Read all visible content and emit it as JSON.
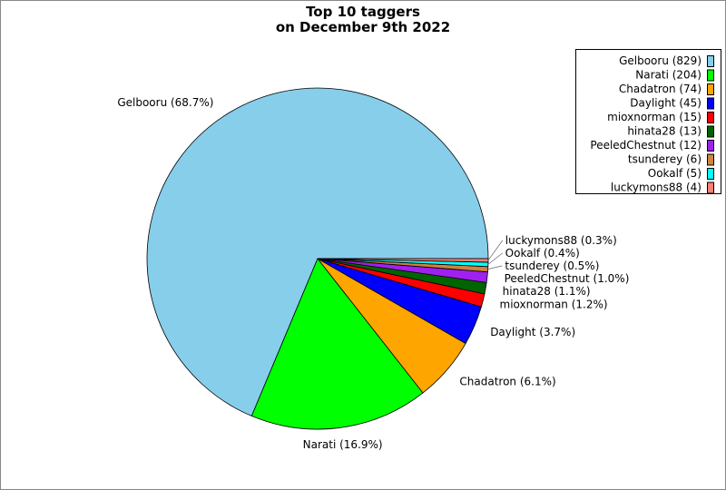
{
  "chart_data": {
    "type": "pie",
    "title": [
      "Top 10 taggers",
      "on December 9th 2022"
    ],
    "start_angle_deg": 0,
    "direction": "counterclockwise",
    "legend_placement": "top-right",
    "slices": [
      {
        "name": "Gelbooru",
        "value": 829,
        "label": "Gelbooru (68.7%)",
        "legend": "Gelbooru (829)",
        "color": "#87CEEB"
      },
      {
        "name": "Narati",
        "value": 204,
        "label": "Narati (16.9%)",
        "legend": "Narati (204)",
        "color": "#00FF00"
      },
      {
        "name": "Chadatron",
        "value": 74,
        "label": "Chadatron (6.1%)",
        "legend": "Chadatron (74)",
        "color": "#FFA500"
      },
      {
        "name": "Daylight",
        "value": 45,
        "label": "Daylight (3.7%)",
        "legend": "Daylight (45)",
        "color": "#0000FF"
      },
      {
        "name": "mioxnorman",
        "value": 15,
        "label": "mioxnorman (1.2%)",
        "legend": "mioxnorman (15)",
        "color": "#FF0000"
      },
      {
        "name": "hinata28",
        "value": 13,
        "label": "hinata28 (1.1%)",
        "legend": "hinata28 (13)",
        "color": "#006400"
      },
      {
        "name": "PeeledChestnut",
        "value": 12,
        "label": "PeeledChestnut (1.0%)",
        "legend": "PeeledChestnut (12)",
        "color": "#A020F0"
      },
      {
        "name": "tsunderey",
        "value": 6,
        "label": "tsunderey (0.5%)",
        "legend": "tsunderey (6)",
        "color": "#CD853F"
      },
      {
        "name": "Ookalf",
        "value": 5,
        "label": "Ookalf (0.4%)",
        "legend": "Ookalf (5)",
        "color": "#00FFFF"
      },
      {
        "name": "luckymons88",
        "value": 4,
        "label": "luckymons88 (0.3%)",
        "legend": "luckymons88 (4)",
        "color": "#FA8072"
      }
    ]
  }
}
